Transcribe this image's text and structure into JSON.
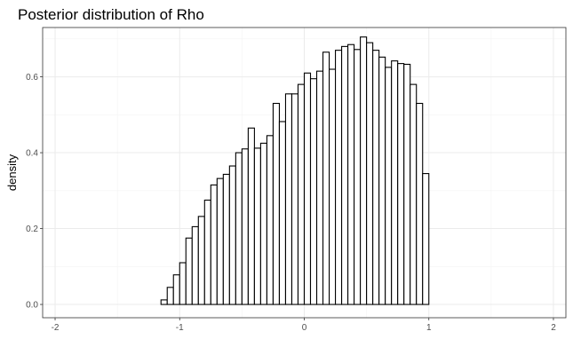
{
  "chart_data": {
    "type": "bar",
    "title": "Posterior distribution of Rho",
    "xlabel": "",
    "ylabel": "density",
    "xlim": [
      -2.1,
      2.1
    ],
    "ylim": [
      -0.035,
      0.73
    ],
    "x_ticks": [
      -2,
      -1,
      0,
      1,
      2
    ],
    "x_tick_labels": [
      "-2",
      "-1",
      "0",
      "1",
      "2"
    ],
    "y_ticks": [
      0.0,
      0.2,
      0.4,
      0.6
    ],
    "y_tick_labels": [
      "0.0",
      "0.2",
      "0.4",
      "0.6"
    ],
    "grid": true,
    "bin_width": 0.05,
    "bins": [
      {
        "x0": -2.0,
        "x1": -1.15,
        "value": 0.0
      },
      {
        "x0": -1.15,
        "x1": -1.1,
        "value": 0.012
      },
      {
        "x0": -1.1,
        "x1": -1.05,
        "value": 0.045
      },
      {
        "x0": -1.05,
        "x1": -1.0,
        "value": 0.078
      },
      {
        "x0": -1.0,
        "x1": -0.95,
        "value": 0.11
      },
      {
        "x0": -0.95,
        "x1": -0.9,
        "value": 0.175
      },
      {
        "x0": -0.9,
        "x1": -0.85,
        "value": 0.205
      },
      {
        "x0": -0.85,
        "x1": -0.8,
        "value": 0.232
      },
      {
        "x0": -0.8,
        "x1": -0.75,
        "value": 0.275
      },
      {
        "x0": -0.75,
        "x1": -0.7,
        "value": 0.315
      },
      {
        "x0": -0.7,
        "x1": -0.65,
        "value": 0.332
      },
      {
        "x0": -0.65,
        "x1": -0.6,
        "value": 0.343
      },
      {
        "x0": -0.6,
        "x1": -0.55,
        "value": 0.365
      },
      {
        "x0": -0.55,
        "x1": -0.5,
        "value": 0.4
      },
      {
        "x0": -0.5,
        "x1": -0.45,
        "value": 0.41
      },
      {
        "x0": -0.45,
        "x1": -0.4,
        "value": 0.465
      },
      {
        "x0": -0.4,
        "x1": -0.35,
        "value": 0.412
      },
      {
        "x0": -0.35,
        "x1": -0.3,
        "value": 0.425
      },
      {
        "x0": -0.3,
        "x1": -0.25,
        "value": 0.445
      },
      {
        "x0": -0.25,
        "x1": -0.2,
        "value": 0.53
      },
      {
        "x0": -0.2,
        "x1": -0.15,
        "value": 0.482
      },
      {
        "x0": -0.15,
        "x1": -0.1,
        "value": 0.555
      },
      {
        "x0": -0.1,
        "x1": -0.05,
        "value": 0.555
      },
      {
        "x0": -0.05,
        "x1": 0.0,
        "value": 0.58
      },
      {
        "x0": 0.0,
        "x1": 0.05,
        "value": 0.61
      },
      {
        "x0": 0.05,
        "x1": 0.1,
        "value": 0.595
      },
      {
        "x0": 0.1,
        "x1": 0.15,
        "value": 0.615
      },
      {
        "x0": 0.15,
        "x1": 0.2,
        "value": 0.665
      },
      {
        "x0": 0.2,
        "x1": 0.25,
        "value": 0.62
      },
      {
        "x0": 0.25,
        "x1": 0.3,
        "value": 0.67
      },
      {
        "x0": 0.3,
        "x1": 0.35,
        "value": 0.68
      },
      {
        "x0": 0.35,
        "x1": 0.4,
        "value": 0.685
      },
      {
        "x0": 0.4,
        "x1": 0.45,
        "value": 0.672
      },
      {
        "x0": 0.45,
        "x1": 0.5,
        "value": 0.705
      },
      {
        "x0": 0.5,
        "x1": 0.55,
        "value": 0.69
      },
      {
        "x0": 0.55,
        "x1": 0.6,
        "value": 0.67
      },
      {
        "x0": 0.6,
        "x1": 0.65,
        "value": 0.652
      },
      {
        "x0": 0.65,
        "x1": 0.7,
        "value": 0.625
      },
      {
        "x0": 0.7,
        "x1": 0.75,
        "value": 0.642
      },
      {
        "x0": 0.75,
        "x1": 0.8,
        "value": 0.635
      },
      {
        "x0": 0.8,
        "x1": 0.85,
        "value": 0.633
      },
      {
        "x0": 0.85,
        "x1": 0.9,
        "value": 0.58
      },
      {
        "x0": 0.9,
        "x1": 0.95,
        "value": 0.53
      },
      {
        "x0": 0.95,
        "x1": 1.0,
        "value": 0.345
      },
      {
        "x0": 1.0,
        "x1": 2.0,
        "value": 0.0
      }
    ]
  }
}
